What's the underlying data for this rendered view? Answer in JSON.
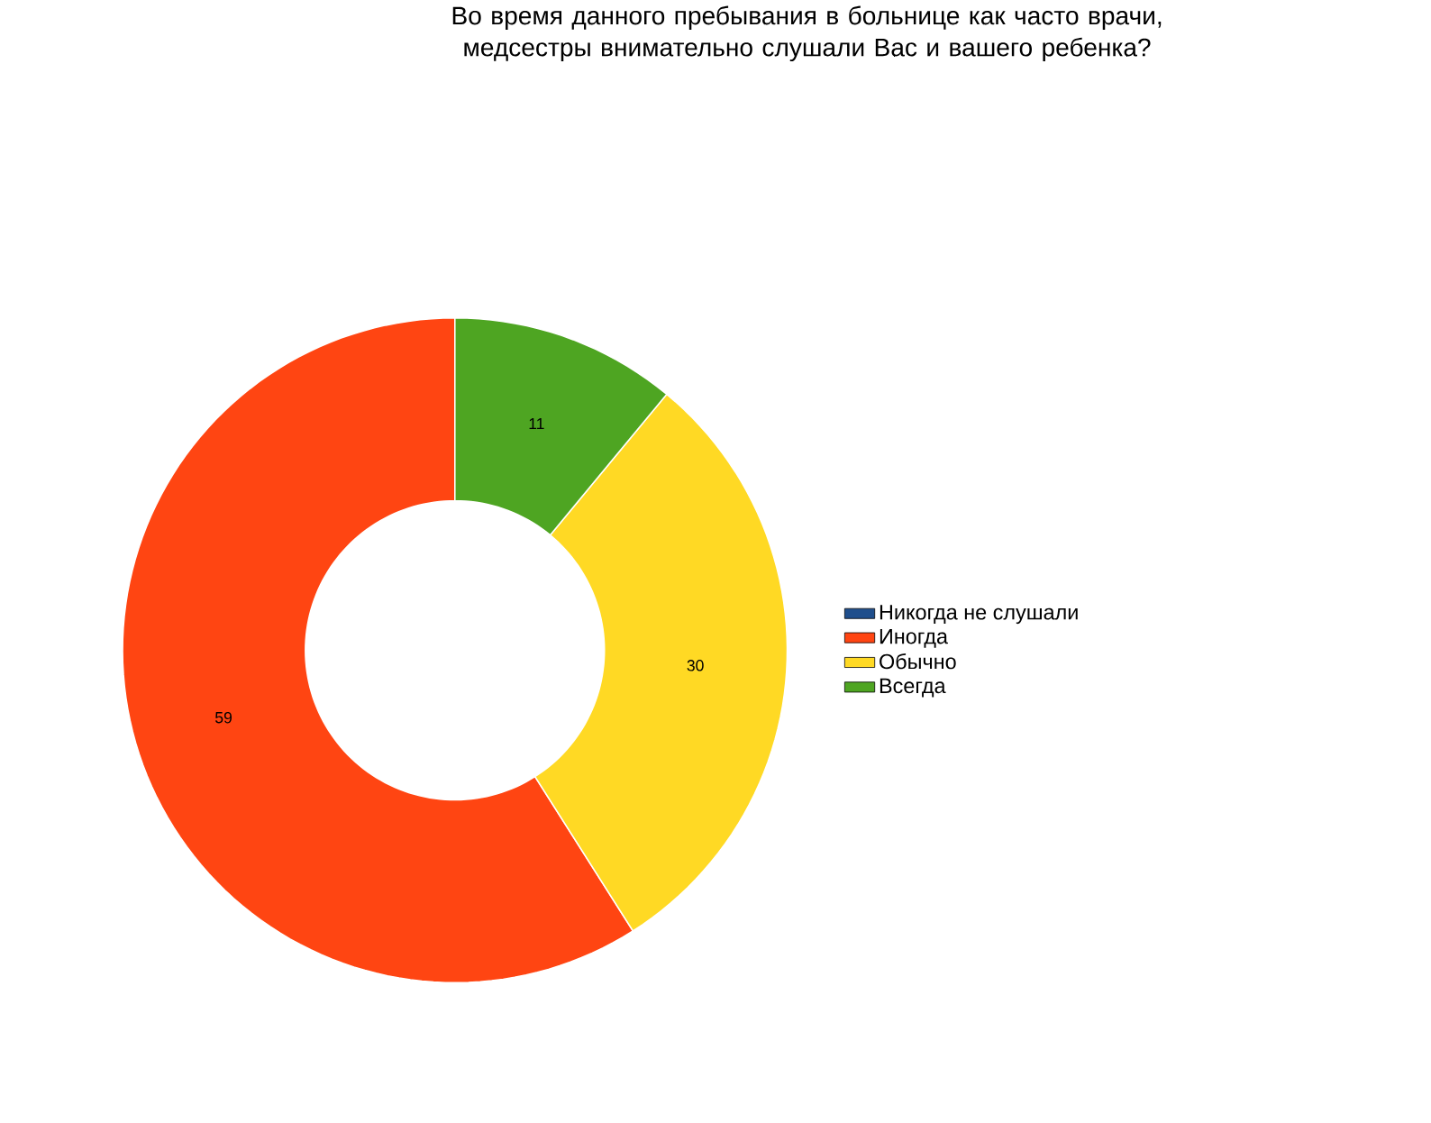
{
  "chart_data": {
    "type": "donut",
    "title": "Во время данного пребывания в больнице как часто врачи, медсестры внимательно слушали Вас и вашего ребенка?",
    "categories": [
      "Никогда не слушали",
      "Иногда",
      "Обычно",
      "Всегда"
    ],
    "values": [
      0,
      59,
      30,
      11
    ],
    "value_labels": [
      null,
      "59",
      "30",
      "11"
    ],
    "colors": [
      "#1f4e8c",
      "#ff4512",
      "#ffd924",
      "#4ea522"
    ],
    "legend": "right"
  }
}
